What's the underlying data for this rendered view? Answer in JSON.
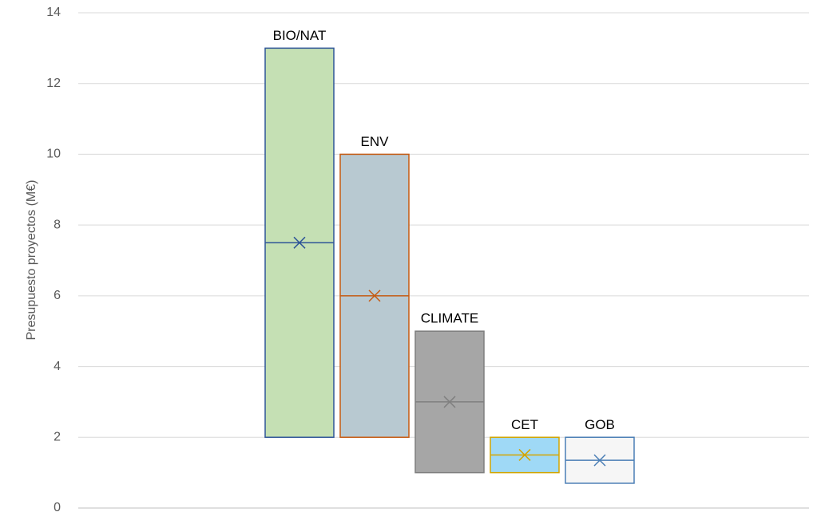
{
  "chart_data": {
    "type": "box",
    "y_label": "Presupuesto proyectos (M€)",
    "ylim": [
      0,
      14
    ],
    "yticks": [
      0,
      2,
      4,
      6,
      8,
      10,
      12,
      14
    ],
    "grid": true,
    "series": [
      {
        "name": "BIO/NAT",
        "color": "#2f5597",
        "fill": "#c5e0b4",
        "low": 2,
        "high": 13,
        "median": 7.5,
        "mean": 7.5
      },
      {
        "name": "ENV",
        "color": "#c55a11",
        "fill": "#b8c9d1",
        "low": 2,
        "high": 10,
        "median": 6,
        "mean": 6
      },
      {
        "name": "CLIMATE",
        "color": "#7f7f7f",
        "fill": "#a6a6a6",
        "low": 1,
        "high": 5,
        "median": 3,
        "mean": 3
      },
      {
        "name": "CET",
        "color": "#d4a500",
        "fill": "#9fd9f6",
        "low": 1,
        "high": 2,
        "median": 1.5,
        "mean": 1.5
      },
      {
        "name": "GOB",
        "color": "#4a7eb5",
        "fill": "#f6f6f6",
        "low": 0.7,
        "high": 2,
        "median": 1.35,
        "mean": 1.35
      }
    ]
  }
}
